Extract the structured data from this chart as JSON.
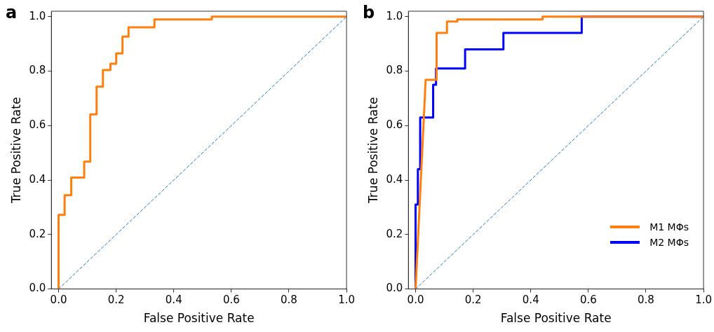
{
  "chart_data": [
    {
      "type": "line",
      "title": "a",
      "xlabel": "False Positive Rate",
      "ylabel": "True Positive Rate",
      "xlim": [
        -0.025,
        1.0
      ],
      "ylim": [
        0,
        1.02
      ],
      "xticks": [
        {
          "value": 0,
          "label": "0.0"
        },
        {
          "value": 0.2,
          "label": "0.2"
        },
        {
          "value": 0.4,
          "label": "0.4"
        },
        {
          "value": 0.6,
          "label": "0.6"
        },
        {
          "value": 0.8,
          "label": "0.8"
        },
        {
          "value": 1,
          "label": "1.0"
        }
      ],
      "yticks": [
        {
          "value": 0,
          "label": "0.0"
        },
        {
          "value": 0.2,
          "label": "0.2"
        },
        {
          "value": 0.4,
          "label": "0.4"
        },
        {
          "value": 0.6,
          "label": "0.6"
        },
        {
          "value": 0.8,
          "label": "0.8"
        },
        {
          "value": 1,
          "label": "1.0"
        }
      ],
      "grid": false,
      "legend": false,
      "marker": "none",
      "series": [
        {
          "color": "#ff7f0e",
          "line_style": "solid",
          "x": [
            0,
            0,
            0.021,
            0.021,
            0.044,
            0.044,
            0.089,
            0.089,
            0.11,
            0.11,
            0.132,
            0.132,
            0.154,
            0.154,
            0.18,
            0.18,
            0.2,
            0.2,
            0.222,
            0.222,
            0.243,
            0.243,
            0.333,
            0.333,
            0.532,
            0.532,
            1
          ],
          "values": [
            0,
            0.272,
            0.272,
            0.344,
            0.344,
            0.409,
            0.409,
            0.468,
            0.468,
            0.641,
            0.641,
            0.743,
            0.743,
            0.804,
            0.804,
            0.827,
            0.827,
            0.865,
            0.865,
            0.927,
            0.927,
            0.961,
            0.961,
            0.99,
            0.99,
            1,
            1
          ]
        },
        {
          "color": "#1f77b4",
          "line_style": "dashed",
          "x": [
            0,
            1
          ],
          "values": [
            0,
            1
          ]
        }
      ]
    },
    {
      "type": "line",
      "title": "b",
      "xlabel": "False Positive Rate",
      "ylabel": "True Positive Rate",
      "xlim": [
        -0.025,
        1.0
      ],
      "ylim": [
        0,
        1.02
      ],
      "xticks": [
        {
          "value": 0,
          "label": "0.0"
        },
        {
          "value": 0.2,
          "label": "0.2"
        },
        {
          "value": 0.4,
          "label": "0.4"
        },
        {
          "value": 0.6,
          "label": "0.6"
        },
        {
          "value": 0.8,
          "label": "0.8"
        },
        {
          "value": 1,
          "label": "1.0"
        }
      ],
      "yticks": [
        {
          "value": 0,
          "label": "0.0"
        },
        {
          "value": 0.2,
          "label": "0.2"
        },
        {
          "value": 0.4,
          "label": "0.4"
        },
        {
          "value": 0.6,
          "label": "0.6"
        },
        {
          "value": 0.8,
          "label": "0.8"
        },
        {
          "value": 1,
          "label": "1.0"
        }
      ],
      "grid": false,
      "legend": "bottom right",
      "marker": "none",
      "series": [
        {
          "name": "M1 MΦs",
          "color": "#ff7f0e",
          "line_style": "solid",
          "x": [
            0,
            0.035,
            0.073,
            0.073,
            0.109,
            0.109,
            0.145,
            0.145,
            0.441,
            0.441,
            1
          ],
          "values": [
            0,
            0.768,
            0.768,
            0.94,
            0.94,
            0.982,
            0.982,
            0.99,
            0.99,
            1,
            1
          ]
        },
        {
          "name": "M2 MΦs",
          "color": "#0000ff",
          "line_style": "solid",
          "x": [
            0,
            0,
            0.008,
            0.008,
            0.016,
            0.016,
            0.061,
            0.061,
            0.071,
            0.071,
            0.172,
            0.172,
            0.305,
            0.305,
            0.577,
            0.577,
            1
          ],
          "values": [
            0,
            0.31,
            0.31,
            0.44,
            0.44,
            0.63,
            0.63,
            0.75,
            0.75,
            0.81,
            0.81,
            0.88,
            0.88,
            0.94,
            0.94,
            1,
            1
          ]
        },
        {
          "color": "#1f77b4",
          "line_style": "dashed",
          "x": [
            0,
            1
          ],
          "values": [
            0,
            1
          ]
        }
      ]
    }
  ]
}
